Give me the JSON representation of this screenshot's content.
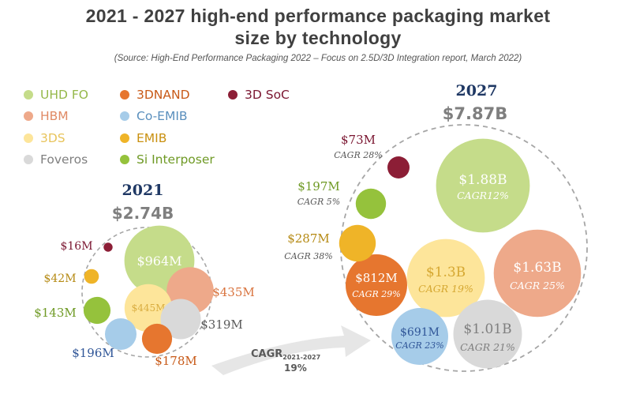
{
  "chart_data": {
    "type": "bubble",
    "title_lines": [
      "2021 - 2027 high-end performance packaging market",
      "size by technology"
    ],
    "source": "(Source: High-End Performance Packaging 2022 – Focus on 2.5D/3D Integration report, March 2022)",
    "legend": [
      {
        "name": "UHD FO",
        "color": "#c5dc8a"
      },
      {
        "name": "HBM",
        "color": "#eea98a"
      },
      {
        "name": "3DS",
        "color": "#fde59a"
      },
      {
        "name": "Foveros",
        "color": "#d9d9d9"
      },
      {
        "name": "3DNAND",
        "color": "#e6762f"
      },
      {
        "name": "Co-EMIB",
        "color": "#a6cce9"
      },
      {
        "name": "EMIB",
        "color": "#efb428"
      },
      {
        "name": "Si Interposer",
        "color": "#95c23c"
      },
      {
        "name": "3D SoC",
        "color": "#8c1e36"
      }
    ],
    "years": [
      {
        "year": "2021",
        "total": "$2.74B",
        "bubbles": [
          {
            "tech": "UHD FO",
            "label": "$964M",
            "value_musd": 964
          },
          {
            "tech": "HBM",
            "label": "$435M",
            "value_musd": 435
          },
          {
            "tech": "3DS",
            "label": "$445M",
            "value_musd": 445
          },
          {
            "tech": "Foveros",
            "label": "$319M",
            "value_musd": 319
          },
          {
            "tech": "3DNAND",
            "label": "$178M",
            "value_musd": 178
          },
          {
            "tech": "Co-EMIB",
            "label": "$196M",
            "value_musd": 196
          },
          {
            "tech": "Si Interposer",
            "label": "$143M",
            "value_musd": 143
          },
          {
            "tech": "EMIB",
            "label": "$42M",
            "value_musd": 42
          },
          {
            "tech": "3D SoC",
            "label": "$16M",
            "value_musd": 16
          }
        ]
      },
      {
        "year": "2027",
        "total": "$7.87B",
        "bubbles": [
          {
            "tech": "UHD FO",
            "label": "$1.88B",
            "cagr": "CAGR12%",
            "value_musd": 1880
          },
          {
            "tech": "HBM",
            "label": "$1.63B",
            "cagr": "CAGR 25%",
            "value_musd": 1630
          },
          {
            "tech": "3DS",
            "label": "$1.3B",
            "cagr": "CAGR 19%",
            "value_musd": 1300
          },
          {
            "tech": "Foveros",
            "label": "$1.01B",
            "cagr": "CAGR 21%",
            "value_musd": 1010
          },
          {
            "tech": "3DNAND",
            "label": "$812M",
            "cagr": "CAGR 29%",
            "value_musd": 812
          },
          {
            "tech": "Co-EMIB",
            "label": "$691M",
            "cagr": "CAGR 23%",
            "value_musd": 691
          },
          {
            "tech": "EMIB",
            "label": "$287M",
            "cagr": "CAGR 38%",
            "value_musd": 287
          },
          {
            "tech": "Si Interposer",
            "label": "$197M",
            "cagr": "CAGR 5%",
            "value_musd": 197
          },
          {
            "tech": "3D SoC",
            "label": "$73M",
            "cagr": "CAGR 28%",
            "value_musd": 73
          }
        ]
      }
    ],
    "overall_cagr": {
      "label": "CAGR",
      "period": "2021-2027",
      "value": "19%"
    }
  },
  "colors": {
    "title": "#404040",
    "year_heading": "#1f3864",
    "total": "#7f7f7f",
    "dashed": "#a6a6a6",
    "arrow": "#e5e5e5"
  }
}
